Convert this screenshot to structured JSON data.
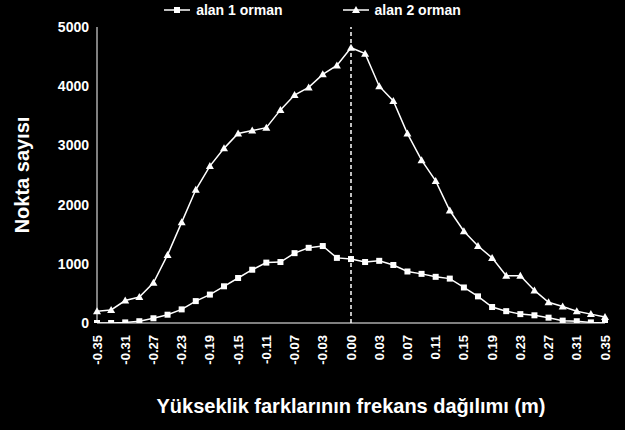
{
  "chart_data": {
    "type": "line",
    "x_label": "Yükseklik farklarının frekans dağılımı (m)",
    "y_label": "Nokta sayısı",
    "categories": [
      "-0.35",
      null,
      "-0.31",
      null,
      "-0.27",
      null,
      "-0.23",
      null,
      "-0.19",
      null,
      "-0.15",
      null,
      "-0.11",
      null,
      "-0.07",
      null,
      "-0.03",
      null,
      "0.00",
      null,
      "0.03",
      null,
      "0.07",
      null,
      "0.11",
      null,
      "0.15",
      null,
      "0.19",
      null,
      "0.23",
      null,
      "0.27",
      null,
      "0.31",
      null,
      "0.35"
    ],
    "reference_line": "0.00",
    "series": [
      {
        "name": "alan 1 orman",
        "color": "#ffffff",
        "marker": "square",
        "values": [
          0,
          0,
          10,
          30,
          80,
          140,
          230,
          370,
          480,
          620,
          760,
          900,
          1020,
          1030,
          1180,
          1270,
          1300,
          1100,
          1080,
          1030,
          1050,
          980,
          870,
          830,
          780,
          750,
          600,
          450,
          270,
          200,
          150,
          130,
          90,
          40,
          30,
          10,
          0
        ]
      },
      {
        "name": "alan 2 orman",
        "color": "#ffffff",
        "marker": "triangle",
        "values": [
          200,
          220,
          380,
          440,
          680,
          1150,
          1700,
          2250,
          2650,
          2950,
          3200,
          3250,
          3300,
          3600,
          3850,
          3980,
          4200,
          4350,
          4650,
          4550,
          4000,
          3750,
          3200,
          2750,
          2400,
          1900,
          1550,
          1300,
          1100,
          800,
          800,
          550,
          350,
          280,
          200,
          150,
          100
        ]
      }
    ],
    "ylim": [
      0,
      5000
    ],
    "yticks": [
      0,
      1000,
      2000,
      3000,
      4000,
      5000
    ],
    "grid": false,
    "legend": "top"
  }
}
